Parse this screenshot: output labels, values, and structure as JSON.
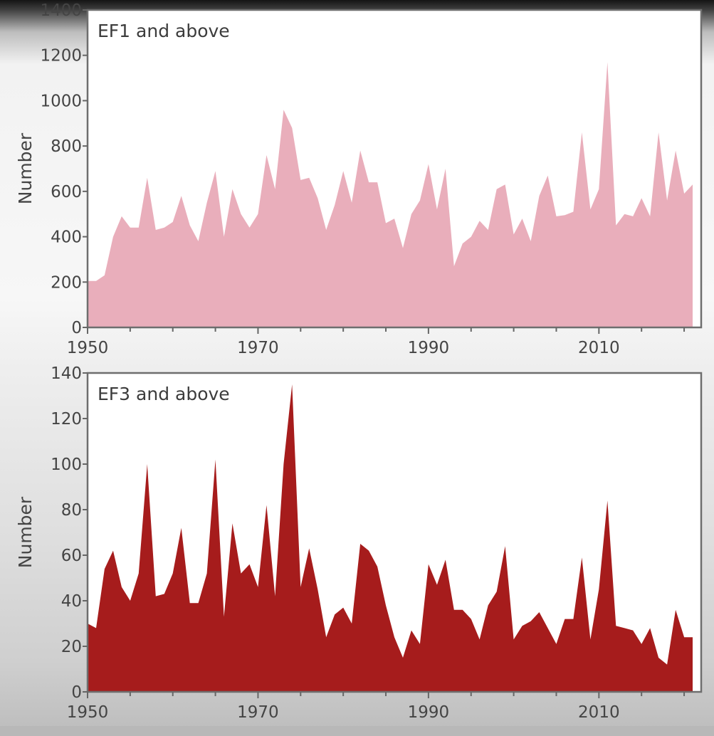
{
  "chart_data": [
    {
      "type": "area",
      "title": "EF1 and above",
      "xlabel": "",
      "ylabel": "Number",
      "xlim": [
        1950,
        2022
      ],
      "ylim": [
        0,
        1400
      ],
      "x_ticks": [
        "1950",
        "1970",
        "1990",
        "2010"
      ],
      "y_ticks": [
        "0",
        "200",
        "400",
        "600",
        "800",
        "1000",
        "1200",
        "1400"
      ],
      "grid": false,
      "color": "#e9aebb",
      "series": [
        {
          "x": [
            1950,
            1951,
            1952,
            1953,
            1954,
            1955,
            1956,
            1957,
            1958,
            1959,
            1960,
            1961,
            1962,
            1963,
            1964,
            1965,
            1966,
            1967,
            1968,
            1969,
            1970,
            1971,
            1972,
            1973,
            1974,
            1975,
            1976,
            1977,
            1978,
            1979,
            1980,
            1981,
            1982,
            1983,
            1984,
            1985,
            1986,
            1987,
            1988,
            1989,
            1990,
            1991,
            1992,
            1993,
            1994,
            1995,
            1996,
            1997,
            1998,
            1999,
            2000,
            2001,
            2002,
            2003,
            2004,
            2005,
            2006,
            2007,
            2008,
            2009,
            2010,
            2011,
            2012,
            2013,
            2014,
            2015,
            2016,
            2017,
            2018,
            2019,
            2020,
            2021
          ],
          "values": [
            205,
            205,
            230,
            400,
            490,
            440,
            440,
            660,
            430,
            440,
            465,
            580,
            450,
            380,
            550,
            690,
            400,
            610,
            500,
            440,
            500,
            760,
            610,
            960,
            880,
            650,
            660,
            570,
            430,
            540,
            690,
            550,
            780,
            640,
            640,
            460,
            480,
            350,
            500,
            560,
            720,
            520,
            700,
            270,
            370,
            400,
            470,
            430,
            610,
            630,
            410,
            480,
            380,
            580,
            670,
            490,
            495,
            510,
            860,
            520,
            610,
            1170,
            450,
            500,
            490,
            570,
            490,
            860,
            560,
            780,
            590,
            630
          ]
        }
      ]
    },
    {
      "type": "area",
      "title": "EF3 and above",
      "xlabel": "",
      "ylabel": "Number",
      "xlim": [
        1950,
        2022
      ],
      "ylim": [
        0,
        140
      ],
      "x_ticks": [
        "1950",
        "1970",
        "1990",
        "2010"
      ],
      "y_ticks": [
        "0",
        "20",
        "40",
        "60",
        "80",
        "100",
        "120",
        "140"
      ],
      "grid": false,
      "color": "#a61c1c",
      "series": [
        {
          "x": [
            1950,
            1951,
            1952,
            1953,
            1954,
            1955,
            1956,
            1957,
            1958,
            1959,
            1960,
            1961,
            1962,
            1963,
            1964,
            1965,
            1966,
            1967,
            1968,
            1969,
            1970,
            1971,
            1972,
            1973,
            1974,
            1975,
            1976,
            1977,
            1978,
            1979,
            1980,
            1981,
            1982,
            1983,
            1984,
            1985,
            1986,
            1987,
            1988,
            1989,
            1990,
            1991,
            1992,
            1993,
            1994,
            1995,
            1996,
            1997,
            1998,
            1999,
            2000,
            2001,
            2002,
            2003,
            2004,
            2005,
            2006,
            2007,
            2008,
            2009,
            2010,
            2011,
            2012,
            2013,
            2014,
            2015,
            2016,
            2017,
            2018,
            2019,
            2020,
            2021
          ],
          "values": [
            30,
            28,
            54,
            62,
            46,
            40,
            52,
            100,
            42,
            43,
            52,
            72,
            39,
            39,
            52,
            102,
            33,
            74,
            52,
            56,
            46,
            82,
            42,
            100,
            135,
            46,
            63,
            45,
            24,
            34,
            37,
            30,
            65,
            62,
            55,
            38,
            24,
            15,
            27,
            21,
            56,
            47,
            58,
            36,
            36,
            32,
            23,
            38,
            44,
            64,
            23,
            29,
            31,
            35,
            28,
            21,
            32,
            32,
            59,
            23,
            45,
            84,
            29,
            28,
            27,
            21,
            28,
            15,
            12,
            36,
            24,
            24
          ]
        }
      ]
    }
  ]
}
